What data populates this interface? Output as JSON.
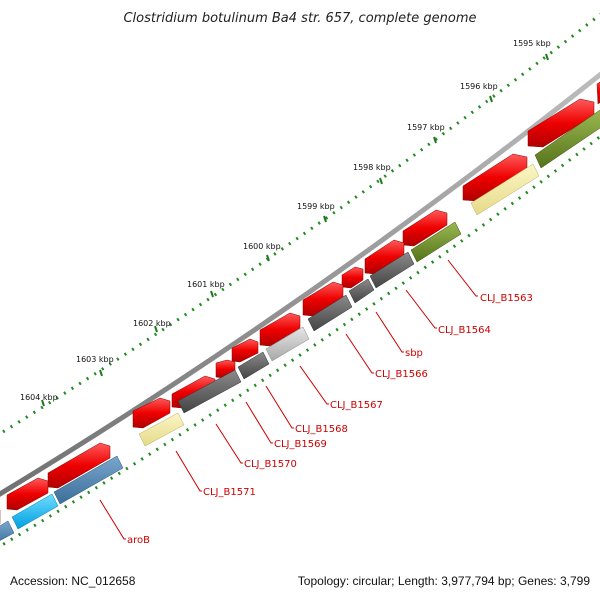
{
  "title": "Clostridium botulinum Ba4 str. 657, complete genome",
  "ticks": [
    "1595 kbp",
    "1596 kbp",
    "1597 kbp",
    "1598 kbp",
    "1599 kbp",
    "1600 kbp",
    "1601 kbp",
    "1602 kbp",
    "1603 kbp",
    "1604 kbp"
  ],
  "gene_labels": [
    "CLJ_B1563",
    "CLJ_B1564",
    "sbp",
    "CLJ_B1566",
    "CLJ_B1567",
    "CLJ_B1568",
    "CLJ_B1569",
    "CLJ_B1570",
    "CLJ_B1571",
    "aroB"
  ],
  "footer": {
    "accession": "Accession: NC_012658",
    "stats": "Topology: circular; Length: 3,977,794 bp; Genes: 3,799"
  },
  "colors": {
    "backbone": "#888888",
    "forward_strand": "#ee0000",
    "tick_dots": "#228b22",
    "label": "#cc0000",
    "cog_olive": "#6b8e23",
    "cog_yellow": "#f0e68c",
    "cog_gray": "#555555",
    "cog_lightgray": "#c0c0c0",
    "cog_blue": "#4682b4",
    "cog_cyan": "#00bfff"
  }
}
